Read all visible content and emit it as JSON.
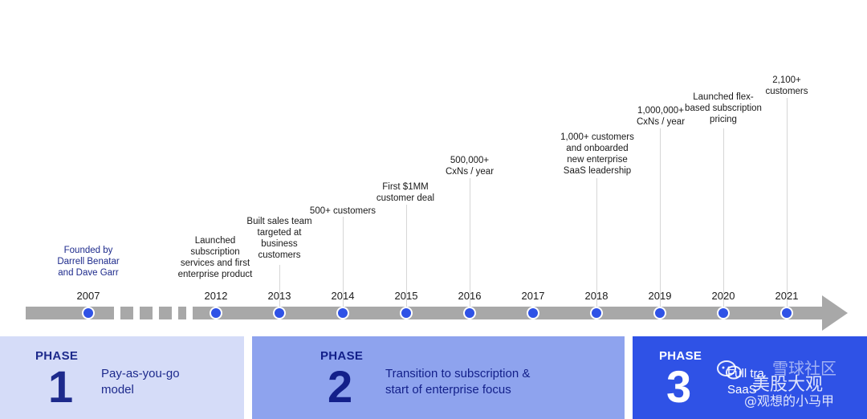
{
  "timeline": {
    "founded_year": "2007",
    "founded_note": "Founded by\nDarrell Benatar\nand Dave Garr",
    "events": [
      {
        "year": "2012",
        "note": "Launched\nsubscription\nservices and first\nenterprise product"
      },
      {
        "year": "2013",
        "note": "Built sales team\ntargeted at\nbusiness\ncustomers"
      },
      {
        "year": "2014",
        "note": "500+ customers"
      },
      {
        "year": "2015",
        "note": "First $1MM\ncustomer deal"
      },
      {
        "year": "2016",
        "note": "500,000+\nCxNs / year"
      },
      {
        "year": "2017",
        "note": ""
      },
      {
        "year": "2018",
        "note": "1,000+ customers\nand onboarded\nnew enterprise\nSaaS leadership"
      },
      {
        "year": "2019",
        "note": "1,000,000+\nCxNs / year"
      },
      {
        "year": "2020",
        "note": "Launched flex-\nbased subscription\npricing"
      },
      {
        "year": "2021",
        "note": "2,100+\ncustomers"
      }
    ]
  },
  "phases": [
    {
      "label": "PHASE",
      "number": "1",
      "description": "Pay-as-you-go\nmodel",
      "color": "#d5dcf8"
    },
    {
      "label": "PHASE",
      "number": "2",
      "description": "Transition to subscription &\nstart of enterprise focus",
      "color": "#8ea3ee"
    },
    {
      "label": "PHASE",
      "number": "3",
      "description": "Full tra\nSaaS",
      "color": "#2f52e6"
    }
  ],
  "watermark": {
    "line1": "美股大观",
    "line2": "@观想的小马甲",
    "line0": "雪球社区"
  }
}
